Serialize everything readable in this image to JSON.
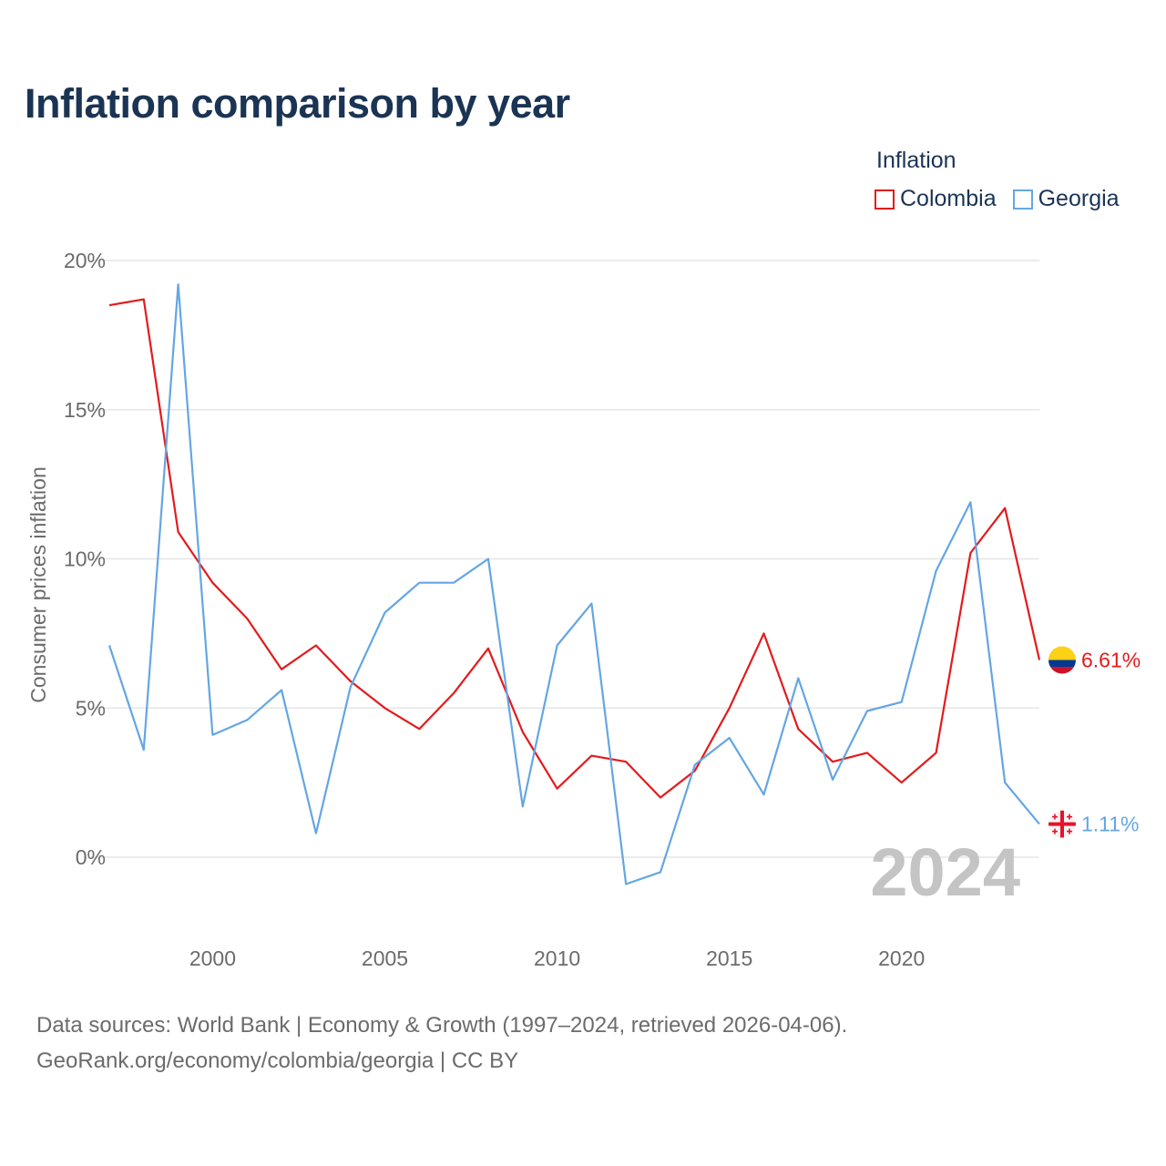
{
  "title": "Inflation comparison by year",
  "legend": {
    "title": "Inflation",
    "items": [
      {
        "label": "Colombia",
        "color": "#e41a1c"
      },
      {
        "label": "Georgia",
        "color": "#64a6e3"
      }
    ]
  },
  "footer": {
    "line1": "Data sources: World Bank | Economy & Growth (1997–2024, retrieved 2026-04-06).",
    "line2": "GeoRank.org/economy/colombia/georgia | CC BY"
  },
  "chart_data": {
    "type": "line",
    "title": "Inflation comparison by year",
    "xlabel": "",
    "ylabel": "Consumer prices inflation",
    "x": [
      1997,
      1998,
      1999,
      2000,
      2001,
      2002,
      2003,
      2004,
      2005,
      2006,
      2007,
      2008,
      2009,
      2010,
      2011,
      2012,
      2013,
      2014,
      2015,
      2016,
      2017,
      2018,
      2019,
      2020,
      2021,
      2022,
      2023,
      2024
    ],
    "xlim": [
      1997,
      2024
    ],
    "ylim": [
      -2.5,
      20.5
    ],
    "x_ticks": [
      2000,
      2005,
      2010,
      2015,
      2020
    ],
    "y_ticks": [
      0,
      5,
      10,
      15,
      20
    ],
    "y_tick_labels": [
      "0%",
      "5%",
      "10%",
      "15%",
      "20%"
    ],
    "grid": true,
    "legend_position": "top-right",
    "year_watermark": "2024",
    "series": [
      {
        "name": "Colombia",
        "color": "#e41a1c",
        "values": [
          18.5,
          18.7,
          10.9,
          9.2,
          8.0,
          6.3,
          7.1,
          5.9,
          5.0,
          4.3,
          5.5,
          7.0,
          4.2,
          2.3,
          3.4,
          3.2,
          2.0,
          2.9,
          5.0,
          7.5,
          4.3,
          3.2,
          3.5,
          2.5,
          3.5,
          10.2,
          11.7,
          6.61
        ],
        "end_label": "6.61%",
        "flag": "colombia-flag"
      },
      {
        "name": "Georgia",
        "color": "#64a6e3",
        "values": [
          7.1,
          3.6,
          19.2,
          4.1,
          4.6,
          5.6,
          0.8,
          5.7,
          8.2,
          9.2,
          9.2,
          10.0,
          1.7,
          7.1,
          8.5,
          -0.9,
          -0.5,
          3.1,
          4.0,
          2.1,
          6.0,
          2.6,
          4.9,
          5.2,
          9.6,
          11.9,
          2.5,
          1.11
        ],
        "end_label": "1.11%",
        "flag": "georgia-flag"
      }
    ]
  }
}
